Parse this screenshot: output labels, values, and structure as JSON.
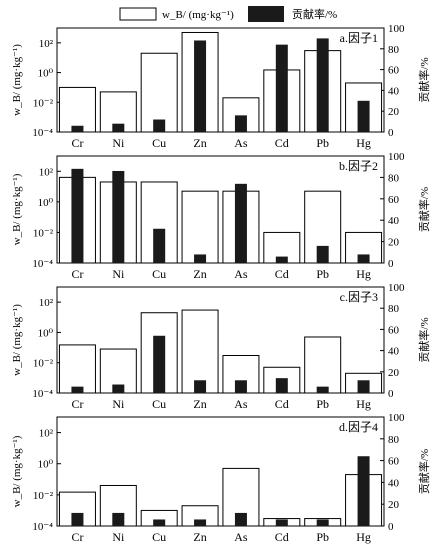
{
  "legend": {
    "open_label": "w_B/ (mg·kg⁻¹)",
    "solid_label": "贡献率/%"
  },
  "chart_data": [
    {
      "type": "bar",
      "title": "a.因子1",
      "categories": [
        "Cr",
        "Ni",
        "Cu",
        "Zn",
        "As",
        "Cd",
        "Pb",
        "Hg"
      ],
      "ylabel_left": "w_B/ (mg·kg⁻¹)",
      "ylabel_right": "贡献率/%",
      "yscale_left": "log",
      "ylim_left": [
        0.0001,
        1000
      ],
      "ylim_right": [
        0,
        100
      ],
      "left_ticks": [
        "10²",
        "10⁰",
        "10⁻²",
        "10⁻⁴"
      ],
      "right_ticks": [
        "100",
        "80",
        "60",
        "40",
        "20",
        "0"
      ],
      "series": [
        {
          "name": "w_B/ (mg·kg⁻¹)",
          "axis": "left",
          "style": "open",
          "values": [
            0.1,
            0.05,
            20,
            500,
            0.02,
            1.5,
            30,
            0.2
          ]
        },
        {
          "name": "贡献率/%",
          "axis": "right",
          "style": "solid",
          "values": [
            6,
            8,
            12,
            88,
            16,
            84,
            90,
            30
          ]
        }
      ]
    },
    {
      "type": "bar",
      "title": "b.因子2",
      "categories": [
        "Cr",
        "Ni",
        "Cu",
        "Zn",
        "As",
        "Cd",
        "Pb",
        "Hg"
      ],
      "ylabel_left": "w_B/ (mg·kg⁻¹)",
      "ylabel_right": "贡献率/%",
      "yscale_left": "log",
      "ylim_left": [
        0.0001,
        1000
      ],
      "ylim_right": [
        0,
        100
      ],
      "left_ticks": [
        "10²",
        "10⁰",
        "10⁻²",
        "10⁻⁴"
      ],
      "right_ticks": [
        "100",
        "80",
        "60",
        "40",
        "20",
        "0"
      ],
      "series": [
        {
          "name": "w_B/ (mg·kg⁻¹)",
          "axis": "left",
          "style": "open",
          "values": [
            40,
            20,
            20,
            5,
            5,
            0.01,
            5,
            0.01
          ]
        },
        {
          "name": "贡献率/%",
          "axis": "right",
          "style": "solid",
          "values": [
            88,
            86,
            32,
            8,
            74,
            6,
            16,
            8
          ]
        }
      ]
    },
    {
      "type": "bar",
      "title": "c.因子3",
      "categories": [
        "Cr",
        "Ni",
        "Cu",
        "Zn",
        "As",
        "Cd",
        "Pb",
        "Hg"
      ],
      "ylabel_left": "w_B/ (mg·kg⁻¹)",
      "ylabel_right": "贡献率/%",
      "yscale_left": "log",
      "ylim_left": [
        0.0001,
        1000
      ],
      "ylim_right": [
        0,
        100
      ],
      "left_ticks": [
        "10²",
        "10⁰",
        "10⁻²",
        "10⁻⁴"
      ],
      "right_ticks": [
        "100",
        "80",
        "60",
        "40",
        "20",
        "0"
      ],
      "series": [
        {
          "name": "w_B/ (mg·kg⁻¹)",
          "axis": "left",
          "style": "open",
          "values": [
            0.15,
            0.08,
            20,
            30,
            0.03,
            0.005,
            0.5,
            0.002
          ]
        },
        {
          "name": "贡献率/%",
          "axis": "right",
          "style": "solid",
          "values": [
            6,
            8,
            54,
            12,
            12,
            14,
            6,
            12
          ]
        }
      ]
    },
    {
      "type": "bar",
      "title": "d.因子4",
      "categories": [
        "Cr",
        "Ni",
        "Cu",
        "Zn",
        "As",
        "Cd",
        "Pb",
        "Hg"
      ],
      "ylabel_left": "w_B/ (mg·kg⁻¹)",
      "ylabel_right": "贡献率/%",
      "yscale_left": "log",
      "ylim_left": [
        0.0001,
        1000
      ],
      "ylim_right": [
        0,
        100
      ],
      "left_ticks": [
        "10²",
        "10⁰",
        "10⁻²",
        "10⁻⁴"
      ],
      "right_ticks": [
        "100",
        "80",
        "60",
        "40",
        "20",
        "0"
      ],
      "series": [
        {
          "name": "w_B/ (mg·kg⁻¹)",
          "axis": "left",
          "style": "open",
          "values": [
            0.015,
            0.04,
            0.001,
            0.002,
            0.5,
            0.0003,
            0.0003,
            0.2
          ]
        },
        {
          "name": "贡献率/%",
          "axis": "right",
          "style": "solid",
          "values": [
            12,
            12,
            6,
            6,
            12,
            6,
            6,
            64
          ]
        }
      ]
    }
  ]
}
